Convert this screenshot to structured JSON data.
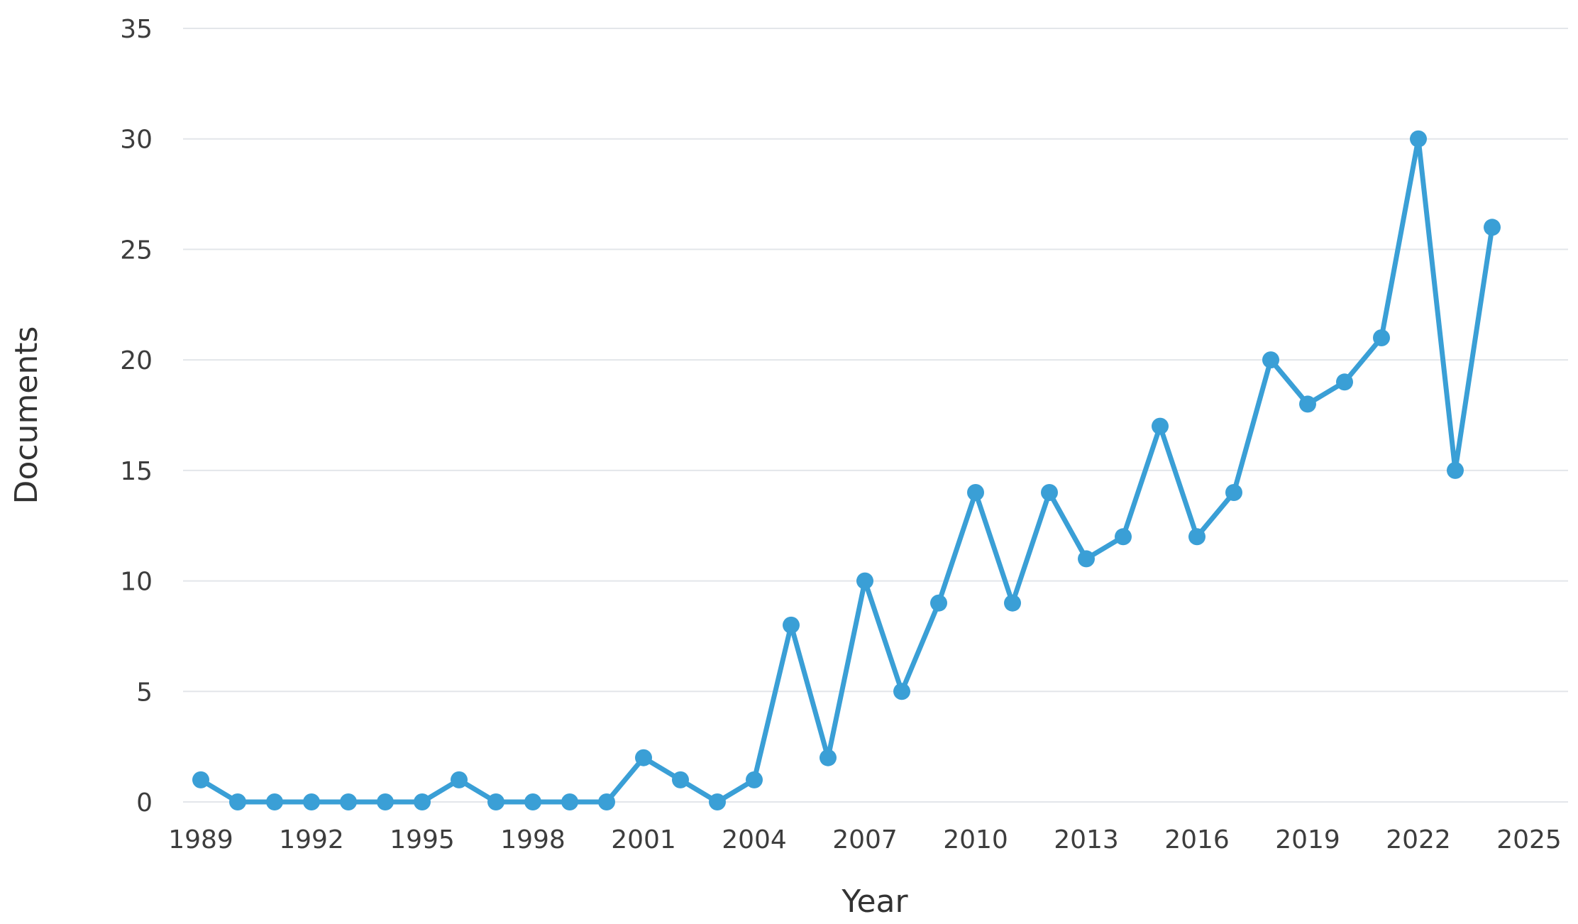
{
  "chart_data": {
    "type": "line",
    "title": "",
    "xlabel": "Year",
    "ylabel": "Documents",
    "xlim": [
      1989,
      2025
    ],
    "ylim": [
      0,
      35
    ],
    "x_ticks": [
      "1989",
      "1992",
      "1995",
      "1998",
      "2001",
      "2004",
      "2007",
      "2010",
      "2013",
      "2016",
      "2019",
      "2022",
      "2025"
    ],
    "y_ticks": [
      "0",
      "5",
      "10",
      "15",
      "20",
      "25",
      "30",
      "35"
    ],
    "grid": true,
    "legend": "none",
    "colors": {
      "series": "#3a9fd6",
      "grid": "#e3e6ea",
      "text": "#3d3d3d"
    },
    "x": [
      1989,
      1990,
      1991,
      1992,
      1993,
      1994,
      1995,
      1996,
      1997,
      1998,
      1999,
      2000,
      2001,
      2002,
      2003,
      2004,
      2005,
      2006,
      2007,
      2008,
      2009,
      2010,
      2011,
      2012,
      2013,
      2014,
      2015,
      2016,
      2017,
      2018,
      2019,
      2020,
      2021,
      2022,
      2023,
      2024
    ],
    "series": [
      {
        "values": [
          1,
          0,
          0,
          0,
          0,
          0,
          0,
          1,
          0,
          0,
          0,
          0,
          2,
          1,
          0,
          1,
          8,
          2,
          10,
          5,
          9,
          14,
          9,
          14,
          11,
          12,
          17,
          12,
          14,
          20,
          18,
          19,
          21,
          30,
          15,
          26
        ]
      }
    ]
  }
}
